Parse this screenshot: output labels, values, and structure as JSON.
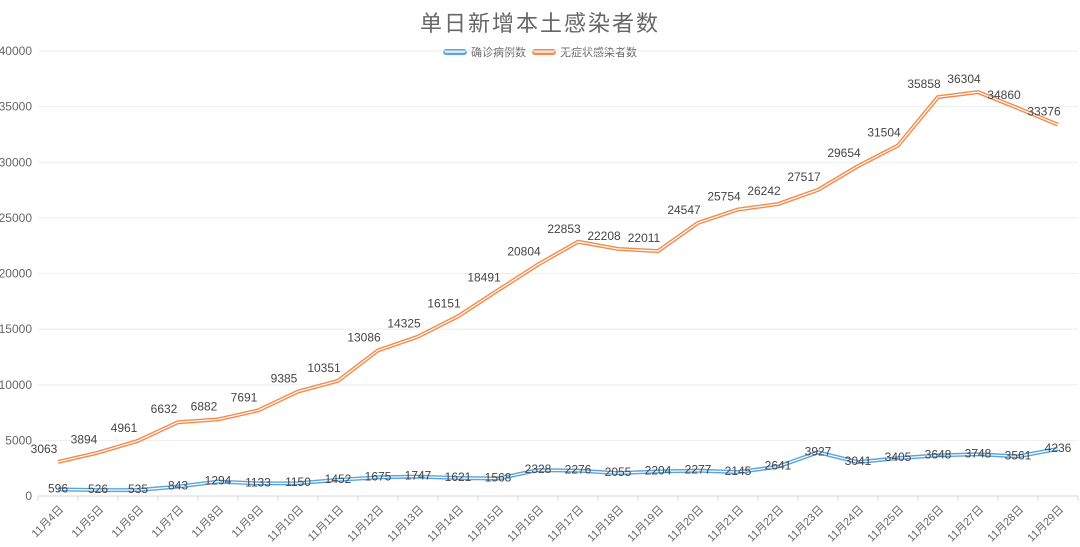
{
  "chart_data": {
    "type": "line",
    "title": "单日新增本土感染者数",
    "xlabel": "",
    "ylabel": "",
    "ylim": [
      0,
      40000
    ],
    "yticks": [
      0,
      5000,
      10000,
      15000,
      20000,
      25000,
      30000,
      35000,
      40000
    ],
    "grid": true,
    "legend_position": "top-center",
    "categories": [
      "11月4日",
      "11月5日",
      "11月6日",
      "11月7日",
      "11月8日",
      "11月9日",
      "11月10日",
      "11月11日",
      "11月12日",
      "11月13日",
      "11月14日",
      "11月15日",
      "11月16日",
      "11月17日",
      "11月18日",
      "11月19日",
      "11月20日",
      "11月21日",
      "11月22日",
      "11月23日",
      "11月24日",
      "11月25日",
      "11月26日",
      "11月27日",
      "11月28日",
      "11月29日"
    ],
    "series": [
      {
        "name": "确诊病例数",
        "color": "#5aa4e0",
        "values": [
          596,
          526,
          535,
          843,
          1294,
          1133,
          1150,
          1452,
          1675,
          1747,
          1621,
          1568,
          2328,
          2276,
          2055,
          2204,
          2277,
          2145,
          2641,
          3927,
          3041,
          3405,
          3648,
          3748,
          3561,
          4236
        ]
      },
      {
        "name": "无症状感染者数",
        "color": "#f5894a",
        "values": [
          3063,
          3894,
          4961,
          6632,
          6882,
          7691,
          9385,
          10351,
          13086,
          14325,
          16151,
          18491,
          20804,
          22853,
          22208,
          22011,
          24547,
          25754,
          26242,
          27517,
          29654,
          31504,
          35858,
          36304,
          34860,
          33376
        ]
      }
    ]
  },
  "legend": {
    "items": [
      {
        "label": "确诊病例数",
        "color": "#5aa4e0"
      },
      {
        "label": "无症状感染者数",
        "color": "#f5894a"
      }
    ]
  }
}
